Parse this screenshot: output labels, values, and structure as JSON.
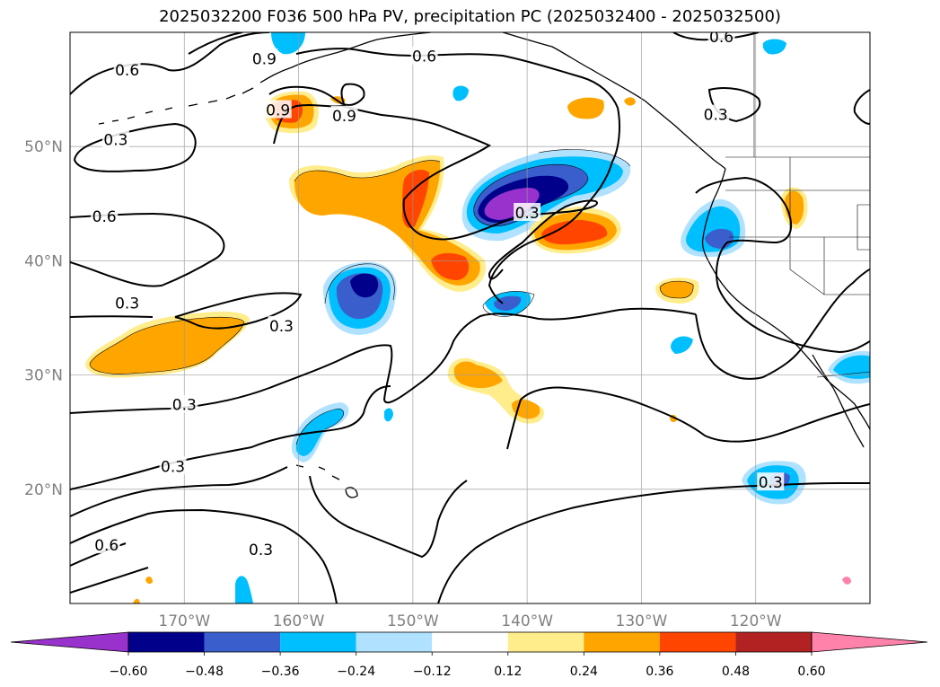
{
  "title": "2025032200 F036 500 hPa PV, precipitation PC (2025032400 - 2025032500)",
  "map": {
    "lon_range": [
      -180,
      -110
    ],
    "lat_range": [
      10,
      60
    ],
    "grid": true,
    "lon_ticks": [
      {
        "value": -170,
        "label": "170°W"
      },
      {
        "value": -160,
        "label": "160°W"
      },
      {
        "value": -150,
        "label": "150°W"
      },
      {
        "value": -140,
        "label": "140°W"
      },
      {
        "value": -130,
        "label": "130°W"
      },
      {
        "value": -120,
        "label": "120°W"
      }
    ],
    "lat_ticks": [
      {
        "value": 20,
        "label": "20°N"
      },
      {
        "value": 30,
        "label": "30°N"
      },
      {
        "value": 40,
        "label": "40°N"
      },
      {
        "value": 50,
        "label": "50°N"
      }
    ]
  },
  "contour_labels": [
    {
      "text": "0.6",
      "lon": -175,
      "lat": 56.7
    },
    {
      "text": "0.9",
      "lon": -163,
      "lat": 57.7
    },
    {
      "text": "0.6",
      "lon": -149,
      "lat": 57.9
    },
    {
      "text": "0.6",
      "lon": -123,
      "lat": 59.6
    },
    {
      "text": "0.9",
      "lon": -161.8,
      "lat": 53.2
    },
    {
      "text": "0.9",
      "lon": -156,
      "lat": 52.7
    },
    {
      "text": "0.3",
      "lon": -123.5,
      "lat": 52.8
    },
    {
      "text": "0.3",
      "lon": -176,
      "lat": 50.6
    },
    {
      "text": "0.6",
      "lon": -177,
      "lat": 43.9
    },
    {
      "text": "0.3",
      "lon": -140,
      "lat": 44.2
    },
    {
      "text": "0.3",
      "lon": -175,
      "lat": 36.3
    },
    {
      "text": "0.3",
      "lon": -161.5,
      "lat": 34.3
    },
    {
      "text": "0.3",
      "lon": -170,
      "lat": 27.4
    },
    {
      "text": "0.3",
      "lon": -171,
      "lat": 22
    },
    {
      "text": "0.6",
      "lon": -176.8,
      "lat": 15.1
    },
    {
      "text": "0.3",
      "lon": -163.3,
      "lat": 14.7
    },
    {
      "text": "0.3",
      "lon": -118.7,
      "lat": 20.6
    }
  ],
  "colorbar": {
    "levels": [
      "−0.60",
      "−0.48",
      "−0.36",
      "−0.24",
      "−0.12",
      "0.12",
      "0.24",
      "0.36",
      "0.48",
      "0.60"
    ],
    "colors": [
      "#9932cc",
      "#00008b",
      "#3a5fcd",
      "#00bfff",
      "#b0e2ff",
      "#ffffff",
      "#ffec8b",
      "#ffa500",
      "#ff4500",
      "#b22222",
      "#ff82ab"
    ]
  },
  "precip_colors": {
    "purple": "#9932cc",
    "navy": "#00008b",
    "royal_blue": "#3a5fcd",
    "sky_blue": "#00bfff",
    "light_blue": "#b0e2ff",
    "light_yellow": "#ffec8b",
    "orange": "#ffa500",
    "orange_red": "#ff4500",
    "firebrick": "#b22222",
    "pink": "#ff82ab"
  }
}
